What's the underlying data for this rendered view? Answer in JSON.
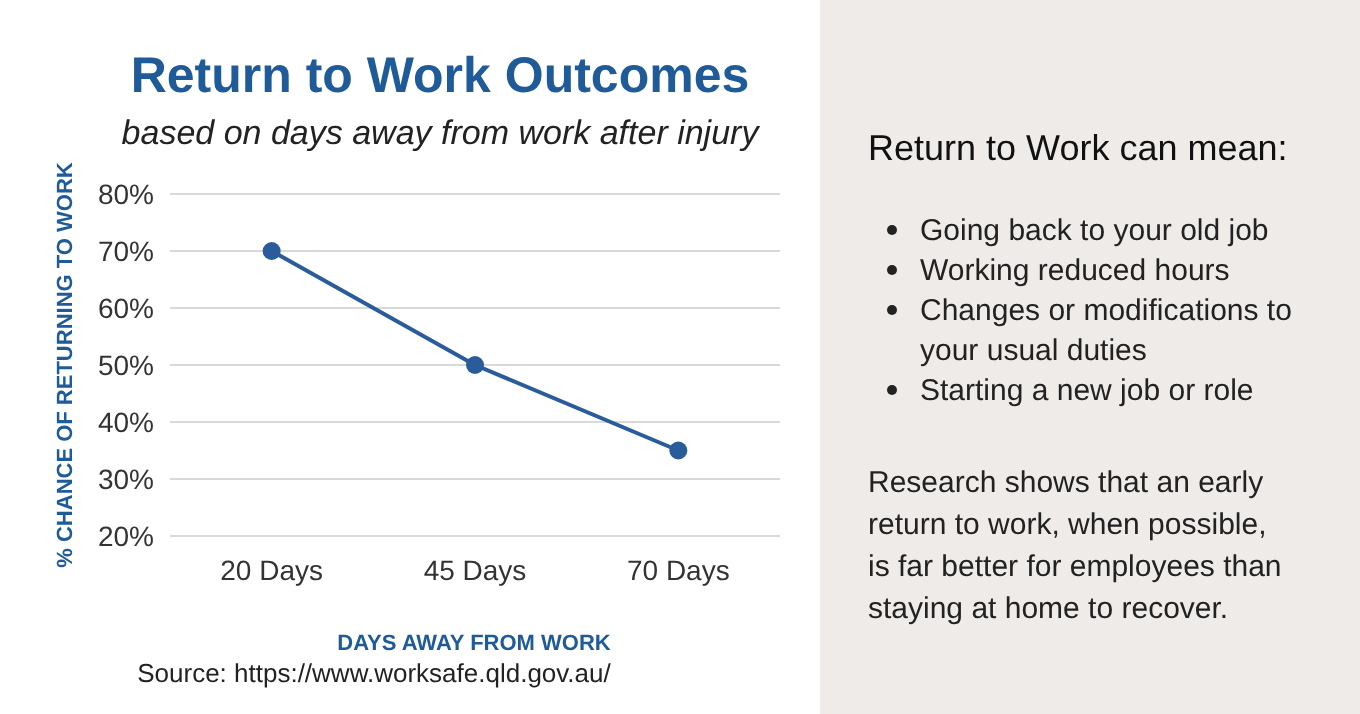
{
  "chart_data": [
    {
      "type": "line",
      "title": "Return to Work Outcomes",
      "subtitle": "based on days away from work after injury",
      "xlabel": "DAYS AWAY FROM WORK",
      "ylabel": "% CHANCE OF RETURNING TO WORK",
      "categories": [
        "20 Days",
        "45 Days",
        "70 Days"
      ],
      "series": [
        {
          "color": "#2a5b9b",
          "values": [
            70,
            50,
            35
          ]
        }
      ],
      "ylim": [
        20,
        80
      ],
      "yticks": [
        {
          "value": 20,
          "label": "20%"
        },
        {
          "value": 30,
          "label": "30%"
        },
        {
          "value": 40,
          "label": "40%"
        },
        {
          "value": 50,
          "label": "50%"
        },
        {
          "value": 60,
          "label": "60%"
        },
        {
          "value": 70,
          "label": "70%"
        },
        {
          "value": 80,
          "label": "80%"
        }
      ],
      "grid": "y",
      "marker": "circle",
      "line_style": "solid",
      "annotations": [
        "Source: https://www.worksafe.qld.gov.au/"
      ]
    },
    {
      "type": "other",
      "title": "Return to Work can mean:",
      "annotations": [
        "Going back to your old job",
        "Working reduced hours",
        "Changes or modifications to your usual duties",
        "Starting a new job or role",
        "Research shows that an early return to work, when possible, is far better for employees than staying at home to recover."
      ]
    }
  ]
}
